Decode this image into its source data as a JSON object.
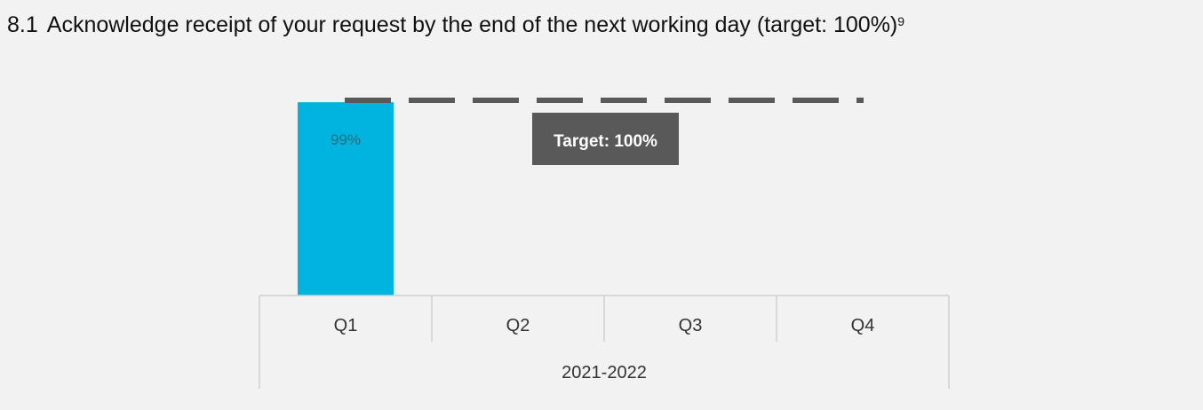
{
  "heading": {
    "number": "8.1",
    "text": "Acknowledge receipt of your request by the end of the next working day (target: 100%)",
    "footnote": "9"
  },
  "colors": {
    "bar": "#00b4df",
    "target_line": "#595959",
    "target_box": "#595959",
    "axis": "#d0d0d0"
  },
  "chart_data": {
    "type": "bar",
    "categories": [
      "Q1",
      "Q2",
      "Q3",
      "Q4"
    ],
    "group_label": "2021-2022",
    "values": [
      99,
      null,
      null,
      null
    ],
    "data_labels": [
      "99%",
      "",
      "",
      ""
    ],
    "target": {
      "value": 100,
      "label": "Target: 100%"
    },
    "ylim": [
      0,
      100
    ],
    "grid": false,
    "legend": "none",
    "title": "",
    "xlabel": "",
    "ylabel": ""
  }
}
